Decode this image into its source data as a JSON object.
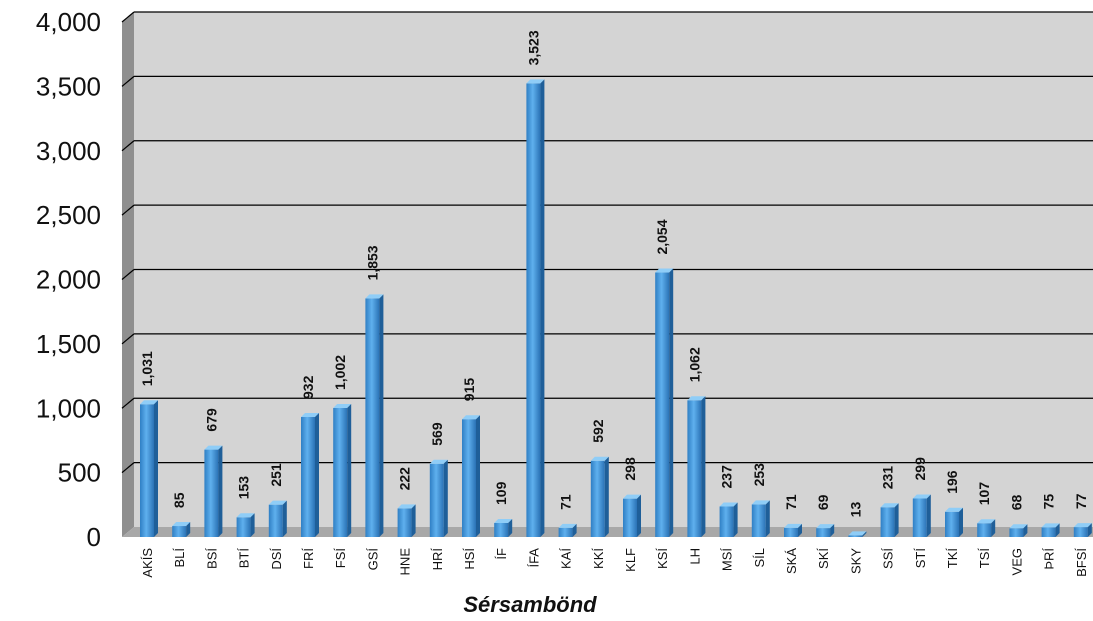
{
  "chart_data": {
    "type": "bar",
    "xlabel": "Sérsambönd",
    "ylabel": "",
    "ylim": [
      0,
      4000
    ],
    "yticks": [
      "0",
      "500",
      "1,000",
      "1,500",
      "2,000",
      "2,500",
      "3,000",
      "3,500",
      "4,000"
    ],
    "grid": true,
    "categories": [
      "AKÍS",
      "BLÍ",
      "BSÍ",
      "BTÍ",
      "DSÍ",
      "FRÍ",
      "FSÍ",
      "GSÍ",
      "HNE",
      "HRÍ",
      "HSÍ",
      "ÍF",
      "ÍFA",
      "KAÍ",
      "KKÍ",
      "KLF",
      "KSÍ",
      "LH",
      "MSÍ",
      "SÍL",
      "SKÁ",
      "SKÍ",
      "SKY",
      "SSÍ",
      "STÍ",
      "TKÍ",
      "TSÍ",
      "VEG",
      "ÞRÍ",
      "BFSÍ"
    ],
    "values": [
      1031,
      85,
      679,
      153,
      251,
      932,
      1002,
      1853,
      222,
      569,
      915,
      109,
      3523,
      71,
      592,
      298,
      2054,
      1062,
      237,
      253,
      71,
      69,
      13,
      231,
      299,
      196,
      107,
      68,
      75,
      77
    ],
    "value_labels": [
      "1,031",
      "85",
      "679",
      "153",
      "251",
      "932",
      "1,002",
      "1,853",
      "222",
      "569",
      "915",
      "109",
      "3,523",
      "71",
      "592",
      "298",
      "2,054",
      "1,062",
      "237",
      "253",
      "71",
      "69",
      "13",
      "231",
      "299",
      "196",
      "107",
      "68",
      "75",
      "77"
    ],
    "bar_color": "#4a9fe0",
    "plot_background": "#d4d4d4"
  }
}
